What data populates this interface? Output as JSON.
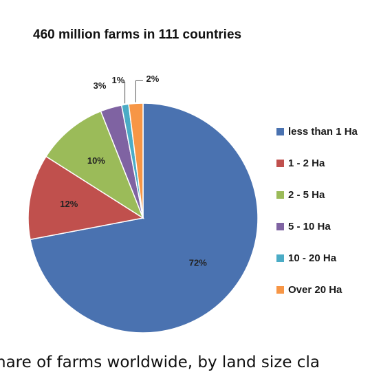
{
  "chart_data": {
    "type": "pie",
    "title": "460 million farms in 111 countries",
    "slices": [
      {
        "label": "less than 1 Ha",
        "value": 72,
        "display": "72%",
        "color": "#4a72b0"
      },
      {
        "label": "1 - 2 Ha",
        "value": 12,
        "display": "12%",
        "color": "#c0504d"
      },
      {
        "label": "2 - 5 Ha",
        "value": 10,
        "display": "10%",
        "color": "#9bbb59"
      },
      {
        "label": "5 - 10 Ha",
        "value": 3,
        "display": "3%",
        "color": "#7f63a2"
      },
      {
        "label": "10 - 20 Ha",
        "value": 1,
        "display": "1%",
        "color": "#4bacc6"
      },
      {
        "label": "Over 20 Ha",
        "value": 2,
        "display": "2%",
        "color": "#f79646"
      }
    ],
    "legend_position": "right"
  },
  "caption": "hare of farms worldwide, by land size cla"
}
